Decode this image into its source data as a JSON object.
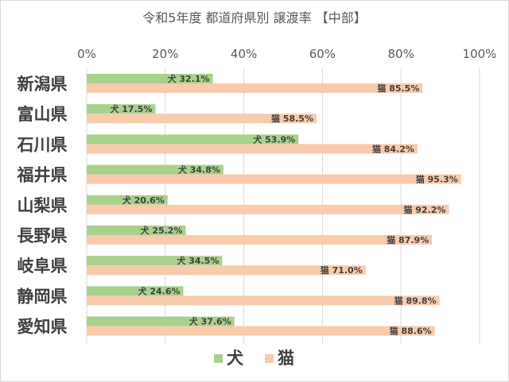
{
  "chart_data": {
    "type": "bar",
    "orientation": "horizontal",
    "title": "令和5年度 都道府県別 譲渡率 【中部】",
    "categories": [
      "新潟県",
      "富山県",
      "石川県",
      "福井県",
      "山梨県",
      "長野県",
      "岐阜県",
      "静岡県",
      "愛知県"
    ],
    "series": [
      {
        "name": "犬",
        "color": "#a9d18e",
        "values": [
          32.1,
          17.5,
          53.9,
          34.8,
          20.6,
          25.2,
          34.5,
          24.6,
          37.6
        ],
        "labels": [
          "犬 32.1%",
          "犬 17.5%",
          "犬 53.9%",
          "犬 34.8%",
          "犬 20.6%",
          "犬 25.2%",
          "犬 34.5%",
          "犬 24.6%",
          "犬 37.6%"
        ]
      },
      {
        "name": "猫",
        "color": "#f8cbad",
        "values": [
          85.5,
          58.5,
          84.2,
          95.3,
          92.2,
          87.9,
          71.0,
          89.8,
          88.6
        ],
        "labels": [
          "猫 85.5%",
          "猫 58.5%",
          "猫 84.2%",
          "猫 95.3%",
          "猫 92.2%",
          "猫 87.9%",
          "猫 71.0%",
          "猫 89.8%",
          "猫 88.6%"
        ]
      }
    ],
    "xlim": [
      0,
      100
    ],
    "xticks": [
      0,
      20,
      40,
      60,
      80,
      100
    ],
    "xtick_labels": [
      "0%",
      "20%",
      "40%",
      "60%",
      "80%",
      "100%"
    ],
    "x_axis_position": "top",
    "grid": true,
    "legend_position": "bottom"
  }
}
